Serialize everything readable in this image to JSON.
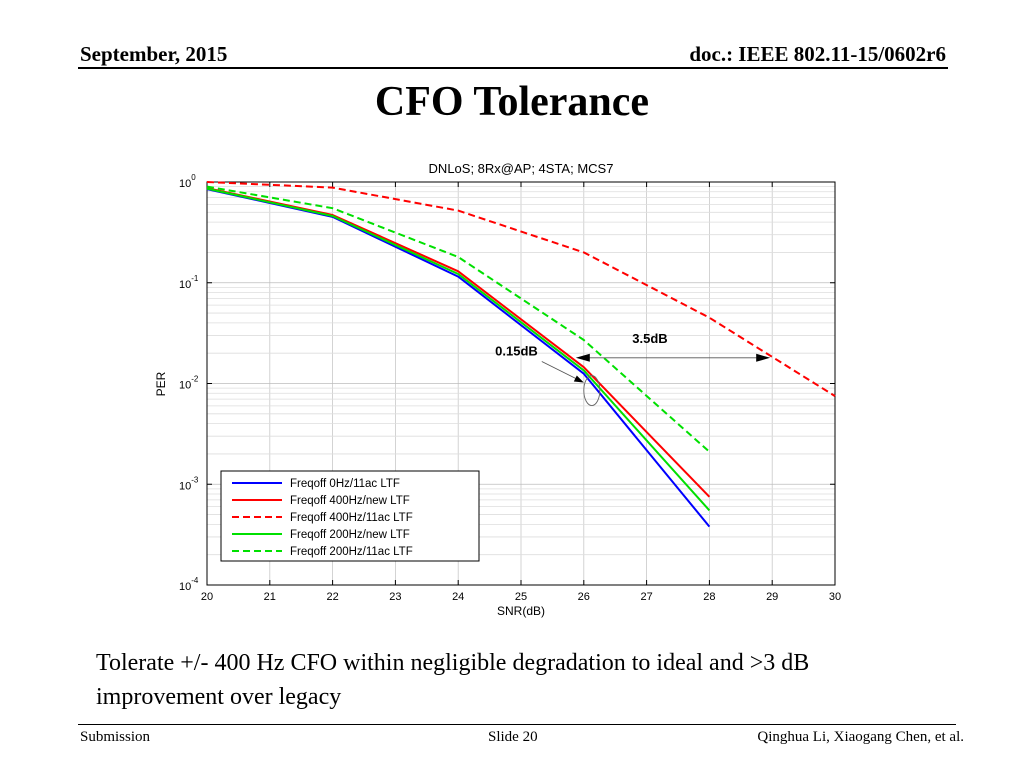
{
  "header": {
    "date": "September, 2015",
    "doc": "doc.: IEEE 802.11-15/0602r6"
  },
  "slide_title": "CFO Tolerance",
  "caption": "Tolerate +/- 400 Hz CFO within negligible degradation to ideal and >3 dB improvement over legacy",
  "footer": {
    "left": "Submission",
    "center": "Slide 20",
    "right": "Qinghua Li, Xiaogang Chen, et al."
  },
  "chart_data": {
    "type": "line",
    "title": "DNLoS; 8Rx@AP; 4STA; MCS7",
    "xlabel": "SNR(dB)",
    "ylabel": "PER",
    "xlim": [
      20,
      30
    ],
    "ylim": [
      0.0001,
      1
    ],
    "yscale": "log",
    "grid": true,
    "x_ticks": [
      "20",
      "21",
      "22",
      "23",
      "24",
      "25",
      "26",
      "27",
      "28",
      "29",
      "30"
    ],
    "y_ticks": [
      {
        "base": "10",
        "exp": "0"
      },
      {
        "base": "10",
        "exp": "-1"
      },
      {
        "base": "10",
        "exp": "-2"
      },
      {
        "base": "10",
        "exp": "-3"
      },
      {
        "base": "10",
        "exp": "-4"
      }
    ],
    "legend_position": "bottom-left",
    "series": [
      {
        "name": "Freqoff 0Hz/11ac LTF",
        "color": "#0000ff",
        "style": "solid",
        "x": [
          20,
          22,
          24,
          26,
          28
        ],
        "y": [
          0.85,
          0.45,
          0.115,
          0.0125,
          0.00038
        ]
      },
      {
        "name": "Freqoff 400Hz/new LTF",
        "color": "#ff0000",
        "style": "solid",
        "x": [
          20,
          22,
          24,
          26,
          28
        ],
        "y": [
          0.87,
          0.47,
          0.13,
          0.0145,
          0.00075
        ]
      },
      {
        "name": "Freqoff 400Hz/11ac LTF",
        "color": "#ff0000",
        "style": "dashed",
        "x": [
          20,
          22,
          24,
          26,
          28,
          30
        ],
        "y": [
          1.0,
          0.88,
          0.52,
          0.2,
          0.045,
          0.0075
        ]
      },
      {
        "name": "Freqoff 200Hz/new LTF",
        "color": "#00e000",
        "style": "solid",
        "x": [
          20,
          22,
          24,
          26,
          28
        ],
        "y": [
          0.86,
          0.46,
          0.122,
          0.0135,
          0.00055
        ]
      },
      {
        "name": "Freqoff 200Hz/11ac LTF",
        "color": "#00e000",
        "style": "dashed",
        "x": [
          20,
          22,
          24,
          26,
          28
        ],
        "y": [
          0.9,
          0.55,
          0.18,
          0.027,
          0.0021
        ]
      }
    ],
    "annotations": [
      {
        "text": "3.5dB",
        "from": [
          26,
          0.018
        ],
        "to": [
          29,
          0.018
        ]
      },
      {
        "text": "0.15dB",
        "at": [
          26,
          0.012
        ]
      }
    ]
  }
}
